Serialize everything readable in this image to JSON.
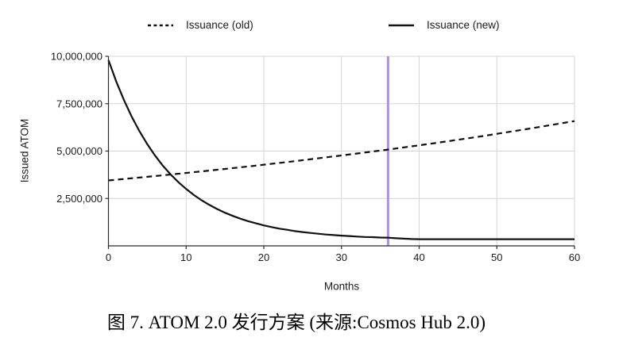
{
  "caption": {
    "text": "图 7. ATOM 2.0 发行方案 (来源:Cosmos Hub 2.0)"
  },
  "colors": {
    "line": "#111111",
    "marker_line": "#a98df0",
    "grid": "#d6d6d6",
    "axis": "#2b2b2b",
    "background": "#ffffff",
    "text": "#1a1a1a"
  },
  "legend": {
    "position": "top",
    "items": [
      {
        "label": "Issuance (old)",
        "style": "dashed"
      },
      {
        "label": "Issuance (new)",
        "style": "solid"
      }
    ]
  },
  "chart_data": {
    "type": "line",
    "title": "",
    "xlabel": "Months",
    "ylabel": "Issued ATOM",
    "xlim": [
      0,
      60
    ],
    "ylim": [
      0,
      10000000
    ],
    "grid": true,
    "legend_position": "top",
    "x_ticks": [
      0,
      10,
      20,
      30,
      40,
      50,
      60
    ],
    "y_ticks": [
      {
        "value": 2500000,
        "label": "2,500,000"
      },
      {
        "value": 5000000,
        "label": "5,000,000"
      },
      {
        "value": 7500000,
        "label": "7,500,000"
      },
      {
        "value": 10000000,
        "label": "10,000,000"
      }
    ],
    "marker": {
      "type": "vline",
      "x": 36,
      "color": "#a98df0"
    },
    "series": [
      {
        "name": "Issuance (old)",
        "style": "dashed",
        "color": "#111111",
        "points": [
          [
            0,
            3450000
          ],
          [
            6,
            3680000
          ],
          [
            12,
            3930000
          ],
          [
            18,
            4190000
          ],
          [
            24,
            4470000
          ],
          [
            30,
            4770000
          ],
          [
            36,
            5080000
          ],
          [
            42,
            5420000
          ],
          [
            48,
            5780000
          ],
          [
            54,
            6170000
          ],
          [
            60,
            6580000
          ]
        ]
      },
      {
        "name": "Issuance (new)",
        "style": "solid",
        "color": "#111111",
        "points": [
          [
            0,
            9800000
          ],
          [
            1,
            8670000
          ],
          [
            2,
            7680000
          ],
          [
            3,
            6810000
          ],
          [
            4,
            6040000
          ],
          [
            5,
            5360000
          ],
          [
            6,
            4760000
          ],
          [
            7,
            4230000
          ],
          [
            8,
            3770000
          ],
          [
            9,
            3360000
          ],
          [
            10,
            3000000
          ],
          [
            11,
            2680000
          ],
          [
            12,
            2400000
          ],
          [
            13,
            2160000
          ],
          [
            14,
            1940000
          ],
          [
            15,
            1750000
          ],
          [
            16,
            1580000
          ],
          [
            17,
            1430000
          ],
          [
            18,
            1300000
          ],
          [
            19,
            1190000
          ],
          [
            20,
            1080000
          ],
          [
            21,
            990000
          ],
          [
            22,
            910000
          ],
          [
            23,
            850000
          ],
          [
            24,
            780000
          ],
          [
            25,
            730000
          ],
          [
            26,
            680000
          ],
          [
            27,
            640000
          ],
          [
            28,
            600000
          ],
          [
            29,
            570000
          ],
          [
            30,
            540000
          ],
          [
            31,
            520000
          ],
          [
            32,
            490000
          ],
          [
            33,
            470000
          ],
          [
            34,
            460000
          ],
          [
            35,
            440000
          ],
          [
            36,
            430000
          ],
          [
            37,
            400000
          ],
          [
            38,
            380000
          ],
          [
            39,
            360000
          ],
          [
            40,
            350000
          ],
          [
            45,
            350000
          ],
          [
            50,
            350000
          ],
          [
            55,
            350000
          ],
          [
            60,
            350000
          ]
        ]
      }
    ]
  }
}
